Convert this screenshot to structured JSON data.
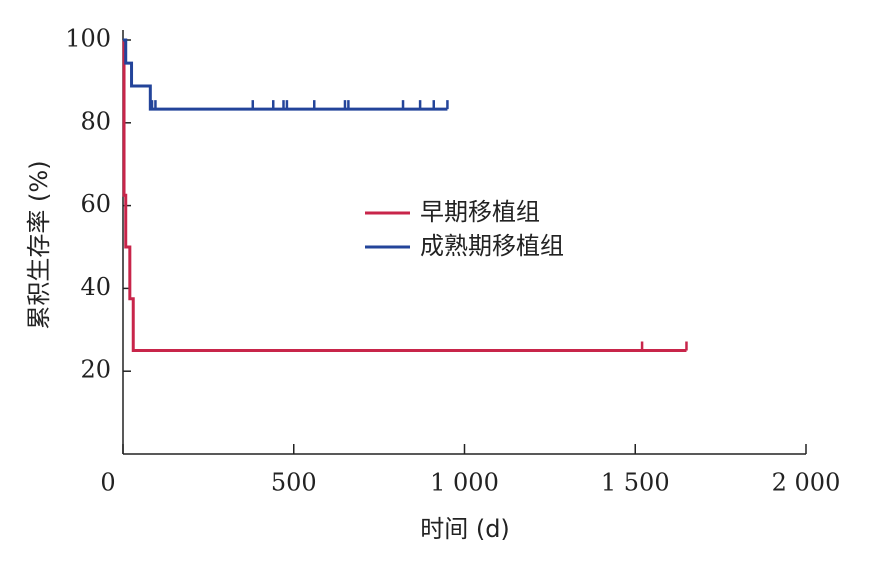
{
  "chart_data": {
    "type": "step",
    "x_label": "时间 (d)",
    "y_label": "累积生存率 (%)",
    "xlim": [
      0,
      2000
    ],
    "ylim": [
      0,
      100
    ],
    "xticks": [
      0,
      500,
      {
        "value": 1000,
        "label": "1 000"
      },
      {
        "value": 1500,
        "label": "1 500"
      },
      {
        "value": 2000,
        "label": "2 000"
      }
    ],
    "yticks": [
      20,
      40,
      60,
      80,
      100
    ],
    "series": [
      {
        "name": "早期移植组",
        "color": "#c8254a",
        "x": [
          0,
          3,
          8,
          20,
          30,
          1650
        ],
        "values": [
          100,
          62.5,
          50,
          37.5,
          25,
          25
        ],
        "censored": {
          "x": [
            1520,
            1650
          ],
          "values": [
            25,
            25
          ]
        }
      },
      {
        "name": "成熟期移植组",
        "color": "#23449a",
        "x": [
          0,
          8,
          25,
          80,
          950
        ],
        "values": [
          100,
          94.4,
          88.9,
          83.3,
          83.3
        ],
        "censored": {
          "x": [
            85,
            95,
            380,
            440,
            470,
            480,
            560,
            650,
            660,
            820,
            870,
            910,
            950
          ],
          "values": [
            83.3,
            83.3,
            83.3,
            83.3,
            83.3,
            83.3,
            83.3,
            83.3,
            83.3,
            83.3,
            83.3,
            83.3,
            83.3
          ]
        }
      }
    ]
  }
}
